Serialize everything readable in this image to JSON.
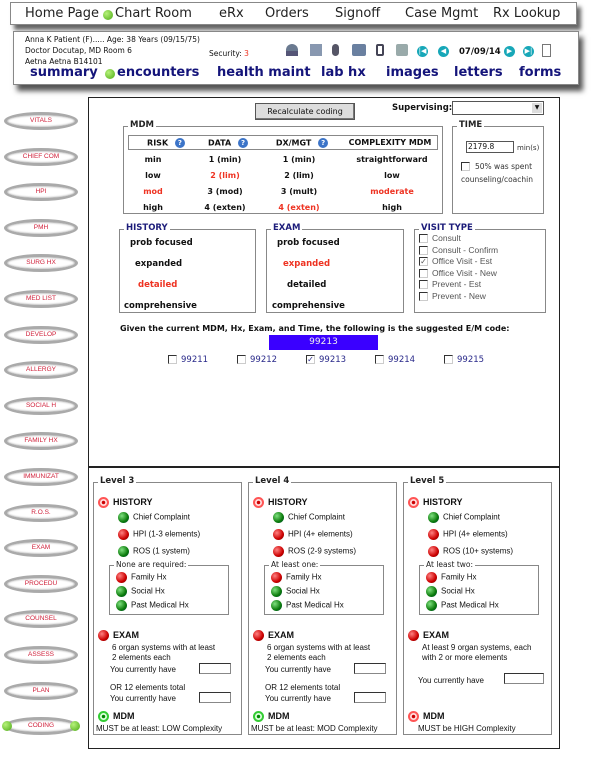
{
  "topnav": {
    "items": [
      "Home Page",
      "Chart Room",
      "eRx",
      "Orders",
      "Signoff",
      "Case Mgmt",
      "Rx Lookup"
    ]
  },
  "patient": {
    "line1": "Anna K Patient (F)..... Age: 38 Years (09/15/75)",
    "line2": "Doctor Docutap, MD  Room 6",
    "line3": "Aetna Aetna B14101",
    "security_label": "Security:",
    "security_value": "3",
    "date": "07/09/14"
  },
  "header_tabs": [
    "summary",
    "encounters",
    "health maint",
    "lab hx",
    "images",
    "letters",
    "forms"
  ],
  "sidebar": [
    "VITALS",
    "CHIEF COM",
    "HPI",
    "PMH",
    "SURG HX",
    "MED LIST",
    "DEVELOP",
    "ALLERGY",
    "SOCIAL H",
    "FAMILY HX",
    "IMMUNIZAT",
    "R.O.S.",
    "EXAM",
    "PROCEDU",
    "COUNSEL",
    "ASSESS",
    "PLAN",
    "CODING"
  ],
  "recalc_label": "Recalculate coding",
  "supervising_label": "Supervising:",
  "supervising_value": "",
  "mdm": {
    "title": "MDM",
    "headers": [
      "RISK",
      "DATA",
      "DX/MGT",
      "COMPLEXITY MDM"
    ],
    "rows": [
      [
        "min",
        "1 (min)",
        "1 (min)",
        "straightforward"
      ],
      [
        "low",
        "2 (lim)",
        "2 (lim)",
        "low"
      ],
      [
        "mod",
        "3 (mod)",
        "3 (mult)",
        "moderate"
      ],
      [
        "high",
        "4 (exten)",
        "4 (exten)",
        "high"
      ]
    ],
    "selected": {
      "risk": 2,
      "data": 1,
      "dx": 3,
      "complexity": 2
    }
  },
  "time": {
    "title": "TIME",
    "value": "2179.8",
    "unit": "min(s)",
    "counsel_label_1": "50% was spent",
    "counsel_label_2": "counseling/coachin",
    "counsel_checked": false
  },
  "history": {
    "title": "HISTORY",
    "items": [
      "prob focused",
      "expanded",
      "detailed",
      "comprehensive"
    ],
    "selected": 2
  },
  "exam": {
    "title": "EXAM",
    "items": [
      "prob focused",
      "expanded",
      "detailed",
      "comprehensive"
    ],
    "selected": 1
  },
  "visit_type": {
    "title": "VISIT TYPE",
    "items": [
      {
        "label": "Consult",
        "checked": false
      },
      {
        "label": "Consult - Confirm",
        "checked": false
      },
      {
        "label": "Office Visit - Est",
        "checked": true
      },
      {
        "label": "Office Visit - New",
        "checked": false
      },
      {
        "label": "Prevent - Est",
        "checked": false
      },
      {
        "label": "Prevent - New",
        "checked": false
      }
    ]
  },
  "suggest_text": "Given the current MDM, Hx, Exam, and Time, the following is the suggested E/M code:",
  "suggested_code": "99213",
  "codes": [
    {
      "code": "99211",
      "checked": false
    },
    {
      "code": "99212",
      "checked": false
    },
    {
      "code": "99213",
      "checked": true
    },
    {
      "code": "99214",
      "checked": false
    },
    {
      "code": "99215",
      "checked": false
    }
  ],
  "levels": [
    {
      "title": "Level 3",
      "history_status": "red",
      "hist": [
        {
          "t": "Chief Complaint",
          "s": "g"
        },
        {
          "t": "HPI (1-3 elements)",
          "s": "r"
        },
        {
          "t": "ROS (1 system)",
          "s": "g"
        }
      ],
      "sub_title": "None are required:",
      "sub": [
        {
          "t": "Family Hx",
          "s": "r"
        },
        {
          "t": "Social Hx",
          "s": "g"
        },
        {
          "t": "Past Medical Hx",
          "s": "g"
        }
      ],
      "exam_desc_1": "6 organ systems with at least",
      "exam_desc_2": "2 elements each",
      "have": "You currently have",
      "or_text": "OR  12 elements total",
      "have2": "You currently have",
      "mdm_status": "green",
      "mdm_text": "MUST be at least: LOW Complexity"
    },
    {
      "title": "Level 4",
      "history_status": "red",
      "hist": [
        {
          "t": "Chief Complaint",
          "s": "g"
        },
        {
          "t": "HPI (4+ elements)",
          "s": "r"
        },
        {
          "t": "ROS (2-9 systems)",
          "s": "r"
        }
      ],
      "sub_title": "At least one:",
      "sub": [
        {
          "t": "Family Hx",
          "s": "r"
        },
        {
          "t": "Social Hx",
          "s": "g"
        },
        {
          "t": "Past Medical Hx",
          "s": "g"
        }
      ],
      "exam_desc_1": "6 organ systems with at least",
      "exam_desc_2": "2 elements each",
      "have": "You currently have",
      "or_text": "OR  12 elements total",
      "have2": "You currently have",
      "mdm_status": "green",
      "mdm_text": "MUST be at least: MOD Complexity"
    },
    {
      "title": "Level 5",
      "history_status": "red",
      "hist": [
        {
          "t": "Chief Complaint",
          "s": "g"
        },
        {
          "t": "HPI (4+ elements)",
          "s": "r"
        },
        {
          "t": "ROS (10+ systems)",
          "s": "r"
        }
      ],
      "sub_title": "At least two:",
      "sub": [
        {
          "t": "Family Hx",
          "s": "r"
        },
        {
          "t": "Social Hx",
          "s": "g"
        },
        {
          "t": "Past Medical Hx",
          "s": "g"
        }
      ],
      "exam_desc_1": "At least 9 organ systems, each",
      "exam_desc_2": "with 2 or more elements",
      "have": "You currently have",
      "mdm_status": "red",
      "mdm_text": "MUST be HIGH Complexity"
    }
  ],
  "labels": {
    "history": "HISTORY",
    "exam": "EXAM",
    "mdm": "MDM"
  },
  "colors": {
    "selected": "#ee3322",
    "header_tab": "#14147a",
    "code_box": "#3a00ff",
    "nav_button": "#17a7b8"
  }
}
